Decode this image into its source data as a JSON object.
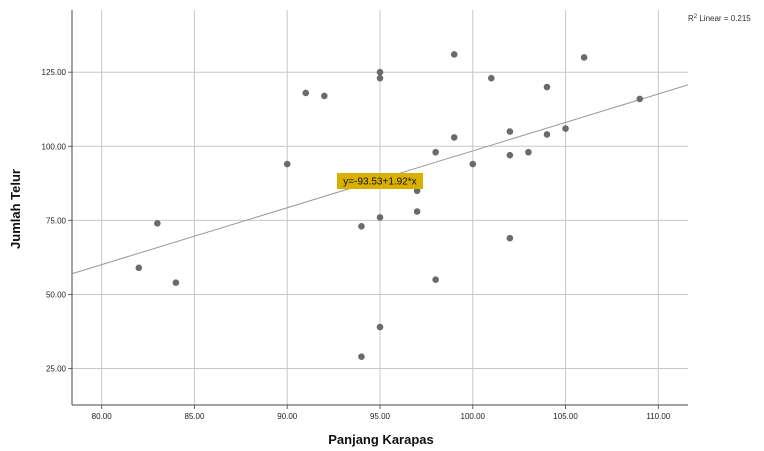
{
  "chart_data": {
    "type": "scatter",
    "xlabel": "Panjang Karapas",
    "ylabel": "Jumlah Telur",
    "xlim": [
      78.4,
      111.6
    ],
    "ylim": [
      12.7,
      146.0
    ],
    "xticks": [
      "80.00",
      "85.00",
      "90.00",
      "95.00",
      "100.00",
      "105.00",
      "110.00"
    ],
    "yticks": [
      "25.00",
      "50.00",
      "75.00",
      "100.00",
      "125.00"
    ],
    "grid": true,
    "points": [
      {
        "x": 82,
        "y": 59
      },
      {
        "x": 83,
        "y": 74
      },
      {
        "x": 84,
        "y": 54
      },
      {
        "x": 90,
        "y": 94
      },
      {
        "x": 91,
        "y": 118
      },
      {
        "x": 92,
        "y": 117
      },
      {
        "x": 94,
        "y": 73
      },
      {
        "x": 94,
        "y": 29
      },
      {
        "x": 95,
        "y": 125
      },
      {
        "x": 95,
        "y": 123
      },
      {
        "x": 95,
        "y": 76
      },
      {
        "x": 95,
        "y": 39
      },
      {
        "x": 97,
        "y": 85
      },
      {
        "x": 97,
        "y": 78
      },
      {
        "x": 98,
        "y": 98
      },
      {
        "x": 98,
        "y": 55
      },
      {
        "x": 99,
        "y": 131
      },
      {
        "x": 99,
        "y": 103
      },
      {
        "x": 100,
        "y": 94
      },
      {
        "x": 101,
        "y": 123
      },
      {
        "x": 102,
        "y": 105
      },
      {
        "x": 102,
        "y": 97
      },
      {
        "x": 102,
        "y": 69
      },
      {
        "x": 103,
        "y": 98
      },
      {
        "x": 104,
        "y": 120
      },
      {
        "x": 104,
        "y": 104
      },
      {
        "x": 105,
        "y": 106
      },
      {
        "x": 106,
        "y": 130
      },
      {
        "x": 109,
        "y": 116
      }
    ],
    "fit_line": {
      "intercept": -93.53,
      "slope": 1.92,
      "label": "y=-93.53+1.92*x"
    },
    "r2_label_prefix": "R",
    "r2_label_suffix": " Linear = 0.215",
    "colors": {
      "point": "#6b6b6b",
      "grid": "#c8c8c8",
      "line": "#999999",
      "label_bg": "#d9b000"
    }
  }
}
